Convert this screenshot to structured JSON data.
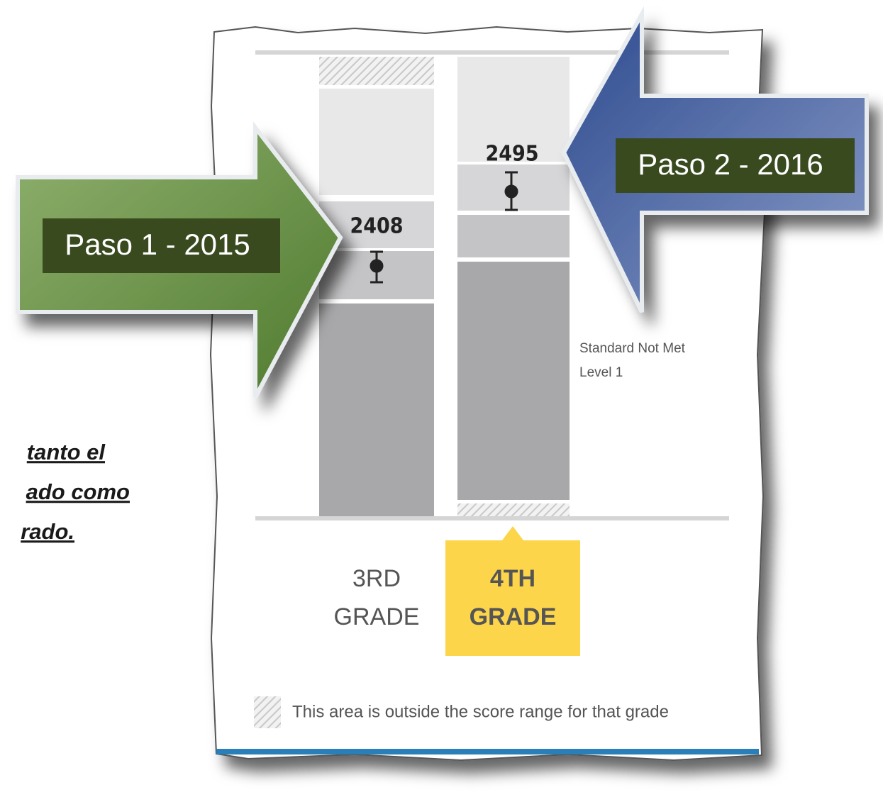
{
  "annotations": {
    "step1": "Paso 1 - 2015",
    "step2": "Paso 2 - 2016"
  },
  "columns": [
    {
      "score": 2408,
      "grade": [
        "3RD",
        "GRADE"
      ]
    },
    {
      "score": 2495,
      "grade": [
        "4TH",
        "GRADE"
      ]
    }
  ],
  "level_labels": [
    [
      "Standard Not Met",
      "Level 1"
    ]
  ],
  "legend": "This area is outside the score range for that grade",
  "side_text": [
    "tanto el",
    "ado como",
    "rado."
  ]
}
